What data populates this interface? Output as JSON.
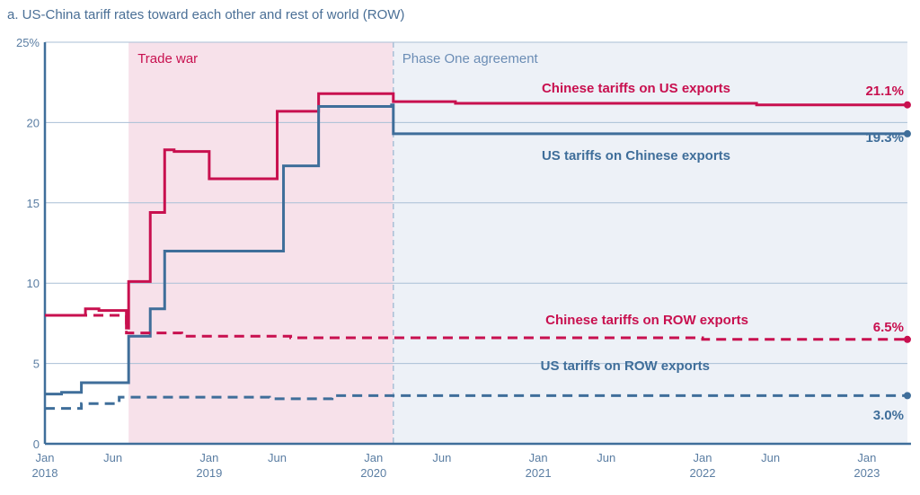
{
  "chart_data": {
    "type": "line",
    "title": "a. US-China tariff rates toward each other and rest of world (ROW)",
    "xlabel": "",
    "ylabel": "",
    "ylim": [
      0,
      25
    ],
    "xlim": [
      "2018-01-01",
      "2023-04-01"
    ],
    "y_ticks": [
      "0",
      "5",
      "10",
      "15",
      "20",
      "25%"
    ],
    "x_ticks": [
      {
        "date": "2018-01-01",
        "label": "Jan",
        "year": "2018"
      },
      {
        "date": "2018-06-01",
        "label": "Jun",
        "year": ""
      },
      {
        "date": "2019-01-01",
        "label": "Jan",
        "year": "2019"
      },
      {
        "date": "2019-06-01",
        "label": "Jun",
        "year": ""
      },
      {
        "date": "2020-01-01",
        "label": "Jan",
        "year": "2020"
      },
      {
        "date": "2020-06-01",
        "label": "Jun",
        "year": ""
      },
      {
        "date": "2021-01-01",
        "label": "Jan",
        "year": "2021"
      },
      {
        "date": "2021-06-01",
        "label": "Jun",
        "year": ""
      },
      {
        "date": "2022-01-01",
        "label": "Jan",
        "year": "2022"
      },
      {
        "date": "2022-06-01",
        "label": "Jun",
        "year": ""
      },
      {
        "date": "2023-01-01",
        "label": "Jan",
        "year": "2023"
      }
    ],
    "grid": true,
    "regions": [
      {
        "label": "Trade war",
        "start": "2018-07-06",
        "end": "2020-02-14",
        "color": "#f7e1ea",
        "text_color": "#c8104f"
      },
      {
        "label": "Phase One agreement",
        "start": "2020-02-14",
        "end": "2023-04-01",
        "color": "#edf1f7",
        "text_color": "#6b8db5"
      }
    ],
    "series": [
      {
        "name": "Chinese tariffs on US exports",
        "color": "#c8104f",
        "dashed": false,
        "end_label": "21.1%",
        "points": [
          [
            "2018-01-01",
            8.0
          ],
          [
            "2018-04-01",
            8.4
          ],
          [
            "2018-05-01",
            8.3
          ],
          [
            "2018-07-01",
            7.2
          ],
          [
            "2018-07-06",
            10.1
          ],
          [
            "2018-08-23",
            14.4
          ],
          [
            "2018-09-24",
            18.3
          ],
          [
            "2018-10-15",
            18.2
          ],
          [
            "2019-01-01",
            16.5
          ],
          [
            "2019-06-01",
            20.7
          ],
          [
            "2019-09-01",
            21.8
          ],
          [
            "2020-02-14",
            21.3
          ],
          [
            "2020-07-01",
            21.2
          ],
          [
            "2022-05-01",
            21.1
          ],
          [
            "2023-04-01",
            21.1
          ]
        ]
      },
      {
        "name": "US tariffs on Chinese exports",
        "color": "#3f6e9a",
        "dashed": false,
        "end_label": "19.3%",
        "points": [
          [
            "2018-01-01",
            3.1
          ],
          [
            "2018-02-07",
            3.2
          ],
          [
            "2018-03-23",
            3.8
          ],
          [
            "2018-07-06",
            6.7
          ],
          [
            "2018-08-23",
            8.4
          ],
          [
            "2018-09-24",
            12.0
          ],
          [
            "2019-06-15",
            17.3
          ],
          [
            "2019-09-01",
            21.0
          ],
          [
            "2020-02-10",
            21.1
          ],
          [
            "2020-02-14",
            19.3
          ],
          [
            "2023-04-01",
            19.3
          ]
        ]
      },
      {
        "name": "Chinese tariffs on ROW exports",
        "color": "#c8104f",
        "dashed": true,
        "end_label": "6.5%",
        "points": [
          [
            "2018-01-01",
            8.0
          ],
          [
            "2018-07-01",
            6.9
          ],
          [
            "2018-11-01",
            6.7
          ],
          [
            "2019-07-01",
            6.6
          ],
          [
            "2022-01-01",
            6.5
          ],
          [
            "2023-04-01",
            6.5
          ]
        ]
      },
      {
        "name": "US tariffs on ROW exports",
        "color": "#3f6e9a",
        "dashed": true,
        "end_label": "3.0%",
        "points": [
          [
            "2018-01-01",
            2.2
          ],
          [
            "2018-03-23",
            2.5
          ],
          [
            "2018-06-15",
            2.9
          ],
          [
            "2019-05-15",
            2.8
          ],
          [
            "2019-10-01",
            3.0
          ],
          [
            "2023-04-01",
            3.0
          ]
        ]
      }
    ]
  }
}
